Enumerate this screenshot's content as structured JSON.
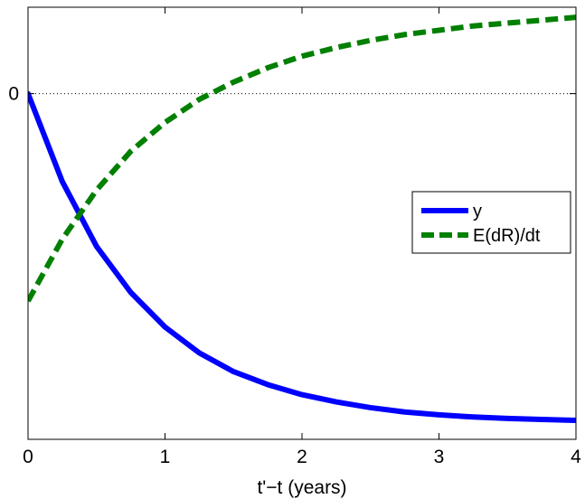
{
  "chart_data": {
    "type": "line",
    "xlabel": "t'−t (years)",
    "ylabel": "",
    "xlim": [
      0,
      4
    ],
    "ylim": [
      -2.4,
      0.6
    ],
    "grid": false,
    "zero_line": true,
    "legend_position": "right",
    "x_ticks": [
      {
        "value": 0,
        "label": "0"
      },
      {
        "value": 1,
        "label": "1"
      },
      {
        "value": 2,
        "label": "2"
      },
      {
        "value": 3,
        "label": "3"
      },
      {
        "value": 4,
        "label": "4"
      }
    ],
    "y_ticks": [
      {
        "value": 0,
        "label": "0"
      }
    ],
    "x": [
      0,
      0.25,
      0.5,
      0.75,
      1.0,
      1.25,
      1.5,
      1.75,
      2.0,
      2.25,
      2.5,
      2.75,
      3.0,
      3.25,
      3.5,
      3.75,
      4.0
    ],
    "series": [
      {
        "name": "y",
        "color": "#0000ff",
        "style": "solid",
        "values": [
          0,
          -0.61,
          -1.06,
          -1.38,
          -1.62,
          -1.8,
          -1.93,
          -2.02,
          -2.09,
          -2.14,
          -2.18,
          -2.21,
          -2.23,
          -2.245,
          -2.255,
          -2.262,
          -2.268
        ]
      },
      {
        "name": "E(dR)/dt",
        "color": "#008000",
        "style": "dashed",
        "values": [
          -1.44,
          -1.01,
          -0.67,
          -0.4,
          -0.2,
          -0.04,
          0.08,
          0.18,
          0.26,
          0.32,
          0.37,
          0.41,
          0.44,
          0.47,
          0.49,
          0.51,
          0.53
        ]
      }
    ]
  }
}
